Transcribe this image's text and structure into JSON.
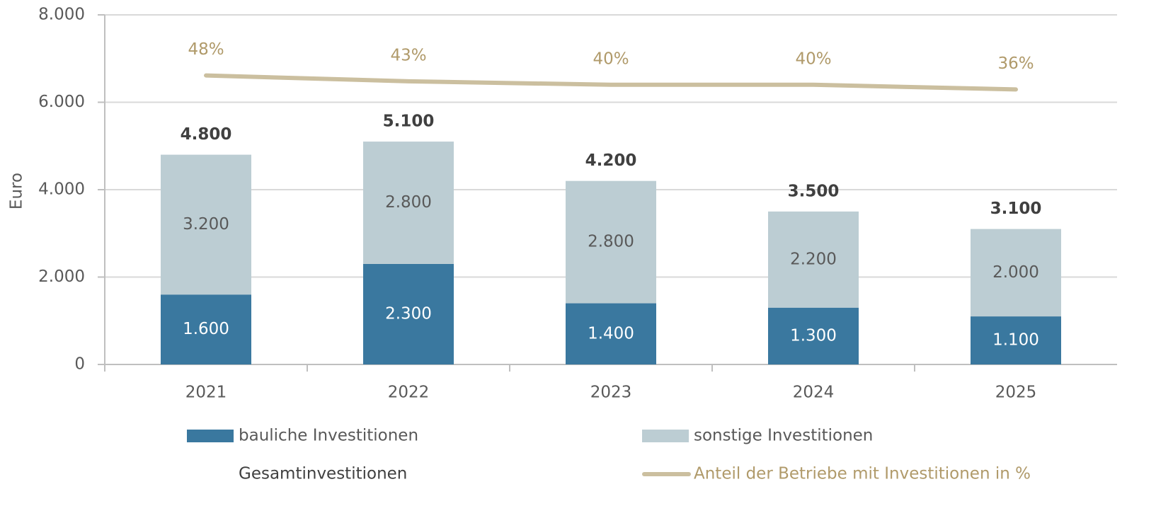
{
  "chart_data": {
    "type": "bar",
    "stacked": true,
    "y_label": "Euro",
    "categories": [
      "2021",
      "2022",
      "2023",
      "2024",
      "2025"
    ],
    "series": [
      {
        "name": "bauliche Investitionen",
        "type": "bar",
        "color": "#3a789f",
        "label_color": "#ffffff",
        "values": [
          1600,
          2300,
          1400,
          1300,
          1100
        ],
        "value_labels": [
          "1.600",
          "2.300",
          "1.400",
          "1.300",
          "1.100"
        ]
      },
      {
        "name": "sonstige Investitionen",
        "type": "bar",
        "color": "#bccdd3",
        "label_color": "#595959",
        "values": [
          3200,
          2800,
          2800,
          2200,
          2000
        ],
        "value_labels": [
          "3.200",
          "2.800",
          "2.800",
          "2.200",
          "2.000"
        ]
      },
      {
        "name": "Gesamtinvestitionen",
        "type": "label",
        "label_color": "#404040",
        "values": [
          4800,
          5100,
          4200,
          3500,
          3100
        ],
        "value_labels": [
          "4.800",
          "5.100",
          "4.200",
          "3.500",
          "3.100"
        ]
      },
      {
        "name": "Anteil der Betriebe mit Investitionen in %",
        "type": "line",
        "axis": "y2",
        "color": "#cbbf9f",
        "label_color": "#b09a6a",
        "values": [
          48,
          43,
          40,
          40,
          36
        ],
        "value_labels": [
          "48%",
          "43%",
          "40%",
          "40%",
          "36%"
        ]
      }
    ],
    "ylim": [
      0,
      8000
    ],
    "yticks": [
      0,
      {
        "value": 2000,
        "label": "2.000"
      },
      {
        "value": 4000,
        "label": "4.000"
      },
      {
        "value": 6000,
        "label": "6.000"
      },
      {
        "value": 8000,
        "label": "8.000"
      }
    ],
    "y2lim": [
      -200,
      100
    ],
    "grid": true
  }
}
